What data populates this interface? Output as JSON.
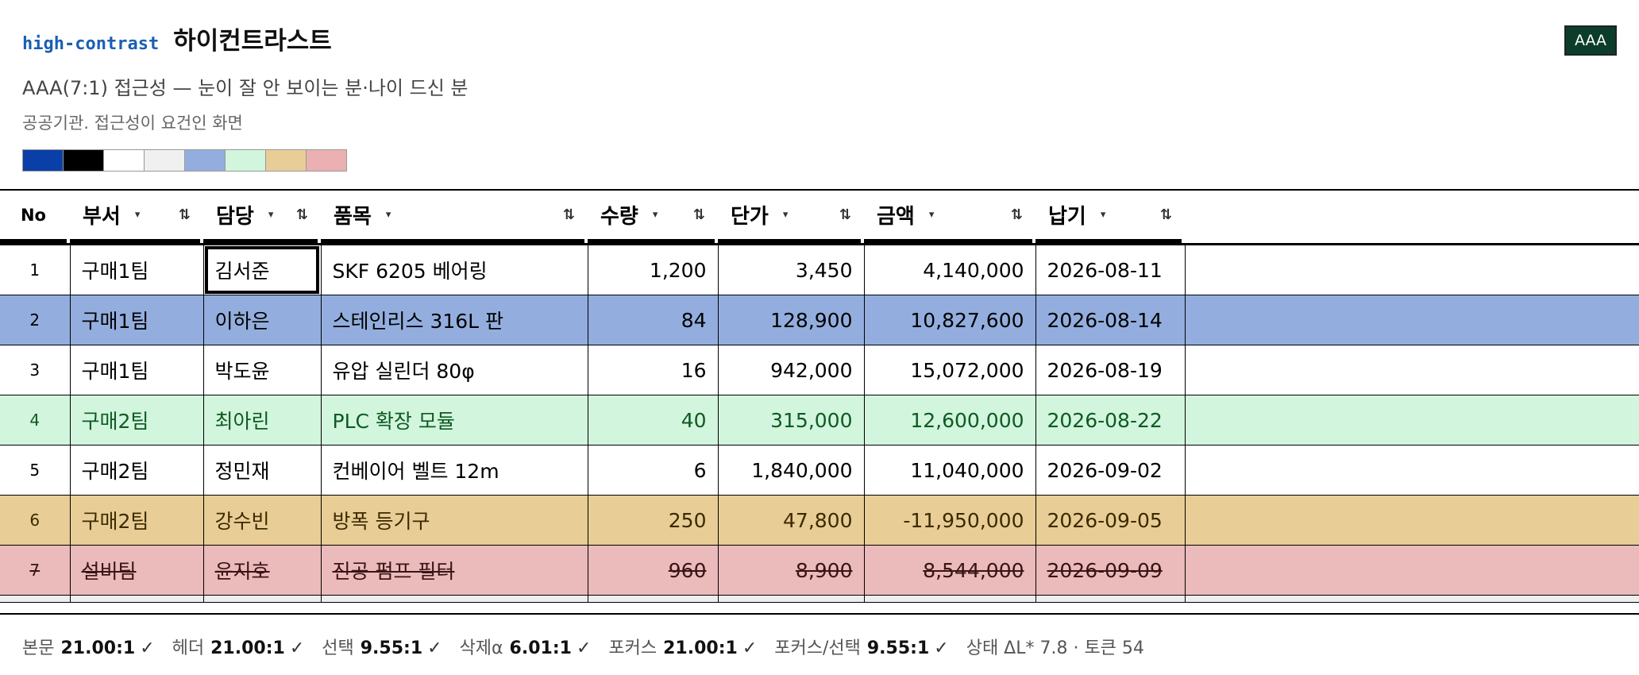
{
  "header": {
    "tag": "high-contrast",
    "title": "하이컨트라스트",
    "badge": "AAA"
  },
  "subtitle": "AAA(7:1) 접근성 — 눈이 잘 안 보이는 분·나이 드신 분",
  "description": "공공기관. 접근성이 요건인 화면",
  "swatches": [
    "#0a3fa8",
    "#000000",
    "#ffffff",
    "#f0f0f0",
    "#93aede",
    "#d2f5dd",
    "#e9cd96",
    "#ebb0b2"
  ],
  "table": {
    "columns": [
      {
        "label": "No"
      },
      {
        "label": "부서",
        "filter": "▾",
        "sort": "⇅"
      },
      {
        "label": "담당",
        "filter": "▾",
        "sort": "⇅"
      },
      {
        "label": "품목",
        "filter": "▾",
        "sort": "⇅"
      },
      {
        "label": "수량",
        "filter": "▾",
        "sort": "⇅"
      },
      {
        "label": "단가",
        "filter": "▾",
        "sort": "⇅"
      },
      {
        "label": "금액",
        "filter": "▾",
        "sort": "⇅"
      },
      {
        "label": "납기",
        "filter": "▾",
        "sort": "⇅"
      }
    ],
    "rows": [
      {
        "no": "1",
        "dept": "구매1팀",
        "mgr": "김서준",
        "item": "SKF 6205 베어링",
        "qty": "1,200",
        "price": "3,450",
        "amount": "4,140,000",
        "due": "2026-08-11",
        "state": "normal"
      },
      {
        "no": "2",
        "dept": "구매1팀",
        "mgr": "이하은",
        "item": "스테인리스 316L 판",
        "qty": "84",
        "price": "128,900",
        "amount": "10,827,600",
        "due": "2026-08-14",
        "state": "selected"
      },
      {
        "no": "3",
        "dept": "구매1팀",
        "mgr": "박도윤",
        "item": "유압 실린더 80φ",
        "qty": "16",
        "price": "942,000",
        "amount": "15,072,000",
        "due": "2026-08-19",
        "state": "normal"
      },
      {
        "no": "4",
        "dept": "구매2팀",
        "mgr": "최아린",
        "item": "PLC 확장 모듈",
        "qty": "40",
        "price": "315,000",
        "amount": "12,600,000",
        "due": "2026-08-22",
        "state": "ok"
      },
      {
        "no": "5",
        "dept": "구매2팀",
        "mgr": "정민재",
        "item": "컨베이어 벨트 12m",
        "qty": "6",
        "price": "1,840,000",
        "amount": "11,040,000",
        "due": "2026-09-02",
        "state": "normal"
      },
      {
        "no": "6",
        "dept": "구매2팀",
        "mgr": "강수빈",
        "item": "방폭 등기구",
        "qty": "250",
        "price": "47,800",
        "amount": "-11,950,000",
        "due": "2026-09-05",
        "state": "warn"
      },
      {
        "no": "7",
        "dept": "설비팀",
        "mgr": "윤지호",
        "item": "진공 펌프 필터",
        "qty": "960",
        "price": "8,900",
        "amount": "8,544,000",
        "due": "2026-09-09",
        "state": "deleted"
      }
    ]
  },
  "footer": {
    "metrics": [
      {
        "label": "본문",
        "value": "21.00:1",
        "check": "✓"
      },
      {
        "label": "헤더",
        "value": "21.00:1",
        "check": "✓"
      },
      {
        "label": "선택",
        "value": "9.55:1",
        "check": "✓"
      },
      {
        "label": "삭제α",
        "value": "6.01:1",
        "check": "✓"
      },
      {
        "label": "포커스",
        "value": "21.00:1",
        "check": "✓"
      },
      {
        "label": "포커스/선택",
        "value": "9.55:1",
        "check": "✓"
      }
    ],
    "status": "상태 ΔL* 7.8 · 토큰 54"
  }
}
